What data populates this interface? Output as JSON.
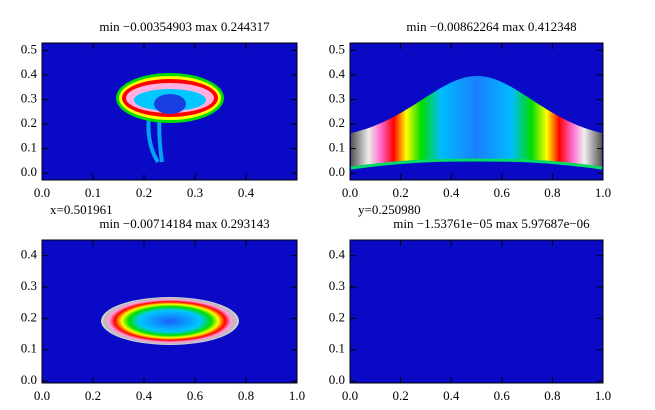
{
  "chart_data": [
    {
      "type": "heatmap",
      "title": "min  −0.00354903   max  0.244317",
      "color": "#0a0ac6",
      "xlim": [
        0,
        0.5
      ],
      "ylim": [
        -0.028,
        0.53
      ],
      "xticks": [
        {
          "value": 0,
          "label": "0.0"
        },
        0.1,
        0.2,
        0.3,
        0.4
      ],
      "yticks": [
        {
          "value": 0,
          "label": "0.0"
        },
        0.1,
        0.2,
        0.3,
        0.4,
        0.5
      ]
    },
    {
      "type": "heatmap",
      "title": "min  −0.00862264   max  0.412348",
      "color": "#0a0ac6",
      "xlim": [
        0,
        1
      ],
      "ylim": [
        -0.028,
        0.53
      ],
      "xticks": [
        {
          "value": 0,
          "label": "0.0"
        },
        0.2,
        0.4,
        0.6,
        0.8,
        {
          "value": 1,
          "label": "1.0"
        }
      ],
      "yticks": [
        {
          "value": 0,
          "label": "0.0"
        },
        0.1,
        0.2,
        0.3,
        0.4,
        0.5
      ]
    },
    {
      "type": "heatmap",
      "title": "min  −0.00714184   max  0.293143",
      "annotation": "x=0.501961",
      "color": "#0a0ac6",
      "xlim": [
        0,
        1
      ],
      "ylim": [
        -0.006,
        0.45
      ],
      "xticks": [
        {
          "value": 0,
          "label": "0.0"
        },
        0.2,
        0.4,
        0.6,
        0.8,
        {
          "value": 1,
          "label": "1.0"
        }
      ],
      "yticks": [
        {
          "value": 0,
          "label": "0.0"
        },
        0.1,
        0.2,
        0.3,
        0.4
      ]
    },
    {
      "type": "heatmap",
      "title": "min  −1.53761e−05   max  5.97687e−06",
      "annotation": "y=0.250980",
      "color": "#0a0ac6",
      "xlim": [
        0,
        1
      ],
      "ylim": [
        -0.006,
        0.45
      ],
      "xticks": [
        {
          "value": 0,
          "label": "0.0"
        },
        0.2,
        0.4,
        0.6,
        0.8,
        {
          "value": 1,
          "label": "1.0"
        }
      ],
      "yticks": [
        {
          "value": 0,
          "label": "0.0"
        },
        0.1,
        0.2,
        0.3,
        0.4
      ]
    }
  ]
}
